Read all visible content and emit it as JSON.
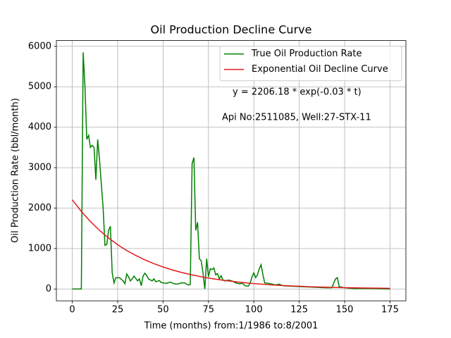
{
  "chart_data": {
    "type": "line",
    "title": "Oil Production Decline Curve",
    "x_label": "Time (months) from:1/1986 to:8/2001",
    "y_label": "Oil Production Rate (bbl/month)",
    "annotations": [
      "y = 2206.18 * exp(-0.03 * t)",
      "Api No:2511085, Well:27-STX-11"
    ],
    "xlim": [
      -8.75,
      183.75
    ],
    "ylim": [
      -292.5,
      6142.5
    ],
    "xticks": [
      0,
      25,
      50,
      75,
      100,
      125,
      150,
      175
    ],
    "yticks": [
      0,
      1000,
      2000,
      3000,
      4000,
      5000,
      6000
    ],
    "grid": true,
    "legend": "upper right",
    "series": [
      {
        "name": "True Oil Production Rate",
        "color": "#008000",
        "x": [
          0,
          5,
          6,
          7,
          8,
          9,
          10,
          11,
          12,
          13,
          14,
          15,
          17,
          18,
          19,
          20,
          21,
          22,
          23,
          24,
          26,
          28,
          29,
          30,
          31,
          32,
          33,
          34,
          35,
          36,
          37,
          38,
          39,
          40,
          41,
          42,
          44,
          45,
          46,
          48,
          49,
          50,
          52,
          54,
          56,
          58,
          60,
          62,
          63,
          64,
          65,
          66,
          67,
          68,
          69,
          70,
          71,
          72,
          73,
          74,
          75,
          76,
          77,
          78,
          79,
          80,
          81,
          82,
          83,
          84,
          86,
          88,
          90,
          92,
          94,
          95,
          97,
          98,
          99,
          100,
          101,
          102,
          103,
          104,
          105,
          106,
          108,
          110,
          112,
          114,
          116,
          120,
          125,
          130,
          135,
          140,
          143,
          144,
          145,
          146,
          147,
          150,
          155,
          160,
          165,
          170,
          175
        ],
        "values": [
          0,
          0,
          5850,
          5000,
          3700,
          3800,
          3500,
          3550,
          3500,
          2700,
          3700,
          3200,
          2000,
          1080,
          1100,
          1450,
          1550,
          400,
          150,
          280,
          280,
          200,
          130,
          370,
          300,
          200,
          250,
          320,
          260,
          200,
          250,
          80,
          320,
          390,
          330,
          250,
          200,
          250,
          180,
          210,
          160,
          150,
          140,
          170,
          130,
          120,
          150,
          150,
          120,
          100,
          110,
          3100,
          3250,
          1450,
          1650,
          750,
          700,
          400,
          0,
          750,
          300,
          500,
          480,
          520,
          350,
          380,
          250,
          330,
          220,
          200,
          220,
          200,
          150,
          130,
          140,
          80,
          70,
          150,
          300,
          400,
          280,
          350,
          500,
          600,
          350,
          150,
          140,
          120,
          100,
          120,
          80,
          70,
          60,
          50,
          40,
          30,
          30,
          150,
          250,
          280,
          60,
          30,
          10,
          10,
          10,
          5,
          0
        ]
      },
      {
        "name": "Exponential Oil Decline Curve",
        "color": "#e31a1c",
        "x": [
          0,
          5,
          10,
          15,
          20,
          25,
          30,
          35,
          40,
          45,
          50,
          55,
          60,
          65,
          70,
          75,
          80,
          85,
          90,
          95,
          100,
          105,
          110,
          115,
          120,
          125,
          130,
          135,
          140,
          145,
          150,
          155,
          160,
          165,
          170,
          175
        ],
        "values": [
          2206,
          1918,
          1667,
          1450,
          1260,
          1096,
          952,
          828,
          720,
          626,
          544,
          473,
          411,
          357,
          311,
          270,
          235,
          204,
          178,
          154,
          134,
          117,
          101,
          88,
          77,
          67,
          58,
          50,
          44,
          38,
          33,
          29,
          25,
          22,
          19,
          16
        ]
      }
    ]
  }
}
